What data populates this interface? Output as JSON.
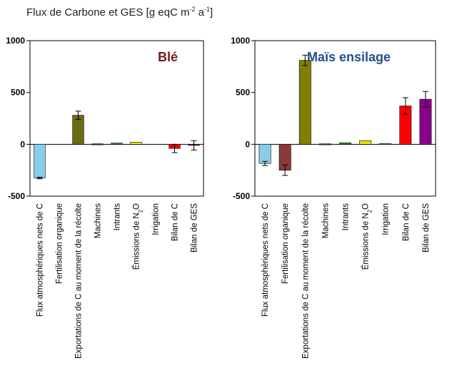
{
  "title": {
    "prefix": "Flux de Carbone et GES [g eqC m",
    "exp1": "-2",
    "mid": " a",
    "exp2": "-1",
    "suffix": "]"
  },
  "chart_data": [
    {
      "type": "bar",
      "title": "Blé",
      "title_color": "#7b1a1a",
      "ylim": [
        -500,
        1000
      ],
      "yticks": [
        "-500",
        "0",
        "500",
        "1000"
      ],
      "categories": [
        "Flux atmosphériques nets de C",
        "Fertilisation organique",
        "Exportations de C au moment de la récolte",
        "Machines",
        "Intrants",
        "Émissions de N2O",
        "Irrigation",
        "Bilan de C",
        "Bilan de GES"
      ],
      "values": [
        -325,
        0,
        280,
        5,
        12,
        20,
        0,
        -40,
        -10
      ],
      "errors": [
        8,
        0,
        40,
        0,
        0,
        0,
        0,
        40,
        45
      ],
      "colors": [
        "#87ceeb",
        "#8b3a3a",
        "#6b6b12",
        "#404040",
        "#2e8b2e",
        "#e8e800",
        "#2a9da8",
        "#ff0000",
        "#8b008b"
      ]
    },
    {
      "type": "bar",
      "title": "Maïs ensilage",
      "title_color": "#1f4e8c",
      "ylim": [
        -500,
        1000
      ],
      "yticks": [
        "-500",
        "0",
        "500",
        "1000"
      ],
      "categories": [
        "Flux atmosphériques nets de C",
        "Fertilisation organique",
        "Exportations de C au moment de la récolte",
        "Machines",
        "Intrants",
        "Émissions de N2O",
        "Irrigation",
        "Bilan de C",
        "Bilan de GES"
      ],
      "values": [
        -185,
        -250,
        810,
        5,
        15,
        35,
        8,
        370,
        435
      ],
      "errors": [
        20,
        50,
        50,
        0,
        0,
        0,
        0,
        80,
        75
      ],
      "colors": [
        "#87ceeb",
        "#8b3a3a",
        "#808000",
        "#404040",
        "#2e8b2e",
        "#e8e800",
        "#2a9da8",
        "#ff0000",
        "#8b008b"
      ]
    }
  ]
}
